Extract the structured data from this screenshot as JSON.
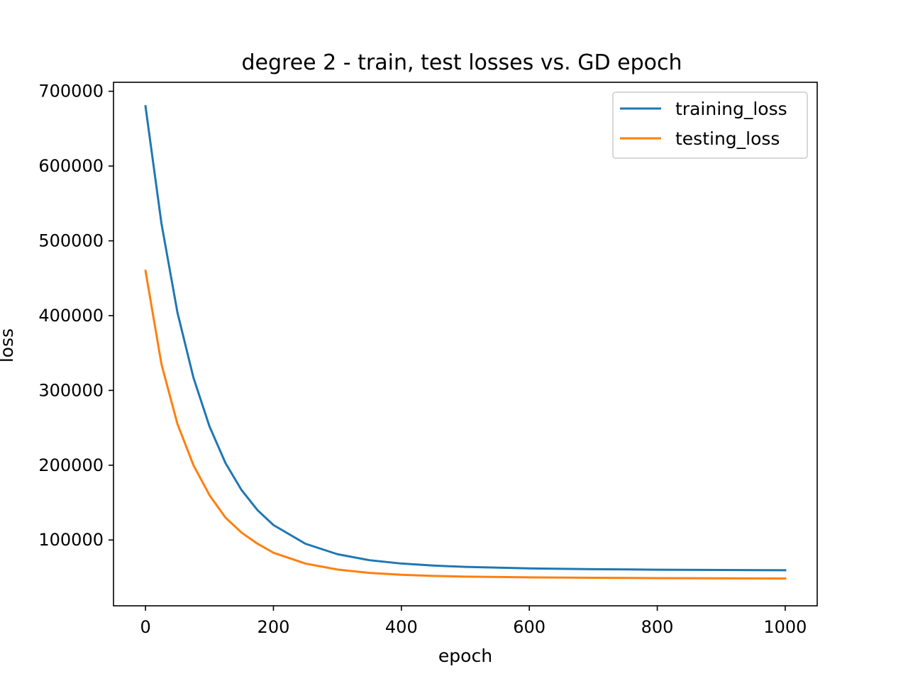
{
  "chart_data": {
    "type": "line",
    "title": "degree 2 - train, test losses vs. GD epoch",
    "xlabel": "epoch",
    "ylabel": "loss",
    "xlim": [
      -50,
      1050
    ],
    "ylim": [
      12000,
      712000
    ],
    "xticks": [
      0,
      200,
      400,
      600,
      800,
      1000
    ],
    "xtick_labels": [
      "0",
      "200",
      "400",
      "600",
      "800",
      "1000"
    ],
    "yticks": [
      100000,
      200000,
      300000,
      400000,
      500000,
      600000,
      700000
    ],
    "ytick_labels": [
      "100000",
      "200000",
      "300000",
      "400000",
      "500000",
      "600000",
      "700000"
    ],
    "grid": false,
    "legend_position": "top-right",
    "x": [
      0,
      25,
      50,
      75,
      100,
      125,
      150,
      175,
      200,
      250,
      300,
      350,
      400,
      450,
      500,
      600,
      700,
      800,
      900,
      1000
    ],
    "series": [
      {
        "name": "training_loss",
        "color": "#1f77b4",
        "values": [
          680000,
          523000,
          404000,
          317000,
          252000,
          203000,
          167000,
          140000,
          120000,
          95000,
          81000,
          73000,
          68500,
          65800,
          64000,
          62000,
          61000,
          60300,
          59900,
          59500
        ]
      },
      {
        "name": "testing_loss",
        "color": "#ff7f0e",
        "values": [
          460000,
          335000,
          255000,
          200000,
          160000,
          130000,
          110000,
          95000,
          83000,
          68500,
          60500,
          56000,
          53500,
          52000,
          51000,
          50000,
          49500,
          49000,
          48700,
          48500
        ]
      }
    ]
  }
}
